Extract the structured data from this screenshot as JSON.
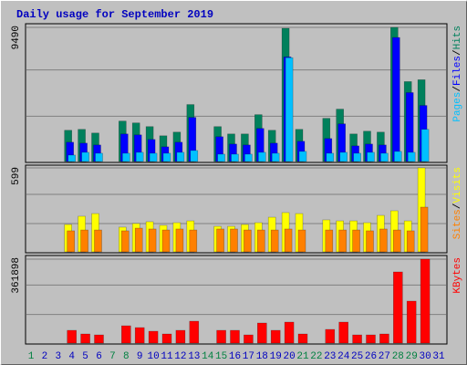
{
  "chart_data": [
    {
      "type": "bar",
      "title": "Daily usage for September 2019",
      "title_color": "#0000c0",
      "ylim": [
        0,
        9490
      ],
      "yticks": [
        9490
      ],
      "legend_separator": "/",
      "series": [
        {
          "name": "Hits",
          "color": "#00805c",
          "values": [
            0,
            0,
            0,
            2210,
            2275,
            2015,
            0,
            2860,
            2730,
            2470,
            1820,
            2080,
            4030,
            0,
            2470,
            1950,
            1950,
            3315,
            2210,
            9425,
            2275,
            0,
            3055,
            3705,
            1950,
            2145,
            2080,
            9490,
            5655,
            5785,
            0
          ]
        },
        {
          "name": "Files",
          "color": "#0000ff",
          "values": [
            0,
            0,
            0,
            1365,
            1300,
            1170,
            0,
            1950,
            1885,
            1560,
            1040,
            1365,
            3120,
            0,
            1755,
            1235,
            1170,
            2340,
            1300,
            7400,
            1430,
            0,
            1625,
            2665,
            1105,
            1235,
            1170,
            8775,
            4875,
            3965,
            0
          ]
        },
        {
          "name": "Pages",
          "color": "#00c0ff",
          "values": [
            0,
            0,
            0,
            455,
            650,
            585,
            0,
            585,
            650,
            585,
            585,
            650,
            780,
            0,
            520,
            520,
            520,
            650,
            585,
            7345,
            715,
            0,
            585,
            650,
            585,
            650,
            585,
            715,
            650,
            2275,
            0
          ]
        }
      ]
    },
    {
      "type": "bar",
      "ylim": [
        0,
        599
      ],
      "yticks": [
        599
      ],
      "legend_separator": "/",
      "series": [
        {
          "name": "Visits",
          "color": "#ffff00",
          "values": [
            0,
            0,
            0,
            195,
            254,
            273,
            0,
            176,
            202,
            215,
            189,
            208,
            221,
            0,
            182,
            182,
            195,
            208,
            247,
            280,
            273,
            0,
            228,
            221,
            221,
            208,
            260,
            293,
            221,
            599,
            0
          ]
        },
        {
          "name": "Sites",
          "color": "#ff8000",
          "values": [
            0,
            0,
            0,
            150,
            156,
            156,
            0,
            150,
            169,
            163,
            156,
            163,
            156,
            0,
            163,
            163,
            156,
            156,
            156,
            163,
            156,
            0,
            156,
            156,
            156,
            150,
            163,
            156,
            150,
            319,
            0
          ]
        }
      ]
    },
    {
      "type": "bar",
      "ylim": [
        0,
        361898
      ],
      "yticks": [
        361898
      ],
      "categories": [
        "1",
        "2",
        "3",
        "4",
        "5",
        "6",
        "7",
        "8",
        "9",
        "10",
        "11",
        "12",
        "13",
        "14",
        "15",
        "16",
        "17",
        "18",
        "19",
        "20",
        "21",
        "22",
        "23",
        "24",
        "25",
        "26",
        "27",
        "28",
        "29",
        "30",
        "31"
      ],
      "category_colors": [
        "#008040",
        "#0000c0",
        "#0000c0",
        "#0000c0",
        "#0000c0",
        "#0000c0",
        "#008040",
        "#008040",
        "#0000c0",
        "#0000c0",
        "#0000c0",
        "#0000c0",
        "#0000c0",
        "#008040",
        "#008040",
        "#0000c0",
        "#0000c0",
        "#0000c0",
        "#0000c0",
        "#0000c0",
        "#008040",
        "#008040",
        "#0000c0",
        "#0000c0",
        "#0000c0",
        "#0000c0",
        "#0000c0",
        "#008040",
        "#008040",
        "#0000c0",
        "#0000c0"
      ],
      "series": [
        {
          "name": "KBytes",
          "color": "#ff0000",
          "values": [
            0,
            0,
            0,
            55076,
            39340,
            35406,
            0,
            74746,
            66878,
            51142,
            39340,
            55076,
            94416,
            0,
            55076,
            55076,
            35406,
            86548,
            55076,
            90482,
            39340,
            0,
            59010,
            90482,
            35406,
            35406,
            39340,
            306852,
            180964,
            361898,
            0
          ]
        }
      ]
    }
  ]
}
